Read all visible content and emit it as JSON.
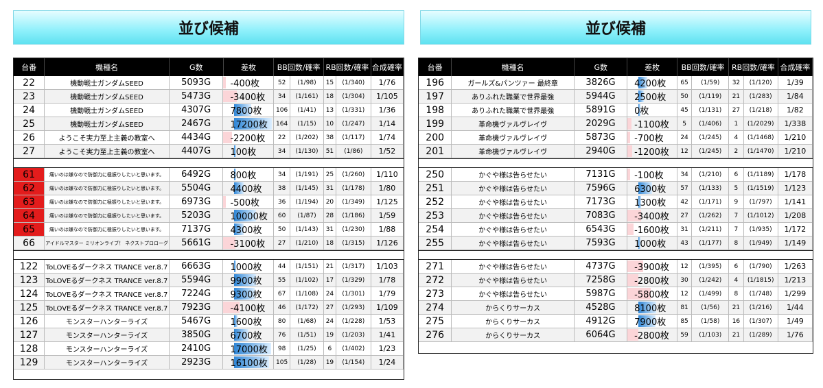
{
  "title": "並び候補",
  "headers": {
    "id": "台番",
    "name": "機種名",
    "g": "G数",
    "diff": "差枚",
    "bb": "BB回数/確率",
    "rb": "RB回数/確率",
    "rate": "合成確率"
  },
  "colors": {
    "highlight_red": "#e31c1c",
    "positive_bar": "#2f86d6",
    "negative_bar": "#fbd5d8",
    "banner": "#8ef0fb"
  },
  "left_groups": [
    [
      {
        "id": "22",
        "name": "機動戦士ガンダムSEED",
        "g": "5093G",
        "diff": "-400枚",
        "diff_value": -400,
        "bb": "52",
        "bb_rate": "(1/98)",
        "rb": "15",
        "rb_rate": "(1/340)",
        "rate": "1/76"
      },
      {
        "id": "23",
        "name": "機動戦士ガンダムSEED",
        "g": "5473G",
        "diff": "-3400枚",
        "diff_value": -3400,
        "bb": "34",
        "bb_rate": "(1/161)",
        "rb": "18",
        "rb_rate": "(1/304)",
        "rate": "1/105"
      },
      {
        "id": "24",
        "name": "機動戦士ガンダムSEED",
        "g": "4307G",
        "diff": "7800枚",
        "diff_value": 7800,
        "bb": "106",
        "bb_rate": "(1/41)",
        "rb": "13",
        "rb_rate": "(1/331)",
        "rate": "1/36"
      },
      {
        "id": "25",
        "name": "機動戦士ガンダムSEED",
        "g": "2467G",
        "diff": "17200枚",
        "diff_value": 17200,
        "bb": "164",
        "bb_rate": "(1/15)",
        "rb": "10",
        "rb_rate": "(1/247)",
        "rate": "1/14"
      },
      {
        "id": "26",
        "name": "ようこそ実力至上主義の教室へ",
        "g": "4434G",
        "diff": "-2200枚",
        "diff_value": -2200,
        "bb": "22",
        "bb_rate": "(1/202)",
        "rb": "38",
        "rb_rate": "(1/117)",
        "rate": "1/74"
      },
      {
        "id": "27",
        "name": "ようこそ実力至上主義の教室へ",
        "g": "4407G",
        "diff": "100枚",
        "diff_value": 100,
        "bb": "34",
        "bb_rate": "(1/130)",
        "rb": "51",
        "rb_rate": "(1/86)",
        "rate": "1/52"
      }
    ],
    [
      {
        "id": "61",
        "red": true,
        "name": "痛いのは嫌なので防御力に極振りしたいと思います。",
        "small": true,
        "g": "6492G",
        "diff": "800枚",
        "diff_value": 800,
        "bb": "34",
        "bb_rate": "(1/191)",
        "rb": "25",
        "rb_rate": "(1/260)",
        "rate": "1/110"
      },
      {
        "id": "62",
        "red": true,
        "name": "痛いのは嫌なので防御力に極振りしたいと思います。",
        "small": true,
        "g": "5504G",
        "diff": "4400枚",
        "diff_value": 4400,
        "bb": "38",
        "bb_rate": "(1/145)",
        "rb": "31",
        "rb_rate": "(1/178)",
        "rate": "1/80"
      },
      {
        "id": "63",
        "red": true,
        "name": "痛いのは嫌なので防御力に極振りしたいと思います。",
        "small": true,
        "g": "6973G",
        "diff": "-500枚",
        "diff_value": -500,
        "bb": "36",
        "bb_rate": "(1/194)",
        "rb": "20",
        "rb_rate": "(1/349)",
        "rate": "1/125"
      },
      {
        "id": "64",
        "red": true,
        "name": "痛いのは嫌なので防御力に極振りしたいと思います。",
        "small": true,
        "g": "5203G",
        "diff": "10000枚",
        "diff_value": 10000,
        "bb": "60",
        "bb_rate": "(1/87)",
        "rb": "28",
        "rb_rate": "(1/186)",
        "rate": "1/59"
      },
      {
        "id": "65",
        "red": true,
        "name": "痛いのは嫌なので防御力に極振りしたいと思います。",
        "small": true,
        "g": "7137G",
        "diff": "4300枚",
        "diff_value": 4300,
        "bb": "50",
        "bb_rate": "(1/143)",
        "rb": "31",
        "rb_rate": "(1/230)",
        "rate": "1/88"
      },
      {
        "id": "66",
        "name": "アイドルマスター ミリオンライブ！ ネクストプロローグ",
        "small": true,
        "g": "5661G",
        "diff": "-3100枚",
        "diff_value": -3100,
        "bb": "27",
        "bb_rate": "(1/210)",
        "rb": "18",
        "rb_rate": "(1/315)",
        "rate": "1/126"
      }
    ],
    [
      {
        "id": "122",
        "name": "ToLOVEるダークネス TRANCE ver.8.7",
        "g": "6663G",
        "diff": "1000枚",
        "diff_value": 1000,
        "bb": "44",
        "bb_rate": "(1/151)",
        "rb": "21",
        "rb_rate": "(1/317)",
        "rate": "1/103"
      },
      {
        "id": "123",
        "name": "ToLOVEるダークネス TRANCE ver.8.7",
        "g": "5594G",
        "diff": "9900枚",
        "diff_value": 9900,
        "bb": "55",
        "bb_rate": "(1/102)",
        "rb": "17",
        "rb_rate": "(1/329)",
        "rate": "1/78"
      },
      {
        "id": "124",
        "name": "ToLOVEるダークネス TRANCE ver.8.7",
        "g": "7224G",
        "diff": "9300枚",
        "diff_value": 9300,
        "bb": "67",
        "bb_rate": "(1/108)",
        "rb": "24",
        "rb_rate": "(1/301)",
        "rate": "1/79"
      },
      {
        "id": "125",
        "name": "ToLOVEるダークネス TRANCE ver.8.7",
        "g": "7923G",
        "diff": "-4100枚",
        "diff_value": -4100,
        "bb": "46",
        "bb_rate": "(1/172)",
        "rb": "27",
        "rb_rate": "(1/293)",
        "rate": "1/109"
      },
      {
        "id": "126",
        "name": "モンスターハンターライズ",
        "g": "5467G",
        "diff": "1600枚",
        "diff_value": 1600,
        "bb": "80",
        "bb_rate": "(1/68)",
        "rb": "24",
        "rb_rate": "(1/228)",
        "rate": "1/53"
      },
      {
        "id": "127",
        "name": "モンスターハンターライズ",
        "g": "3850G",
        "diff": "6700枚",
        "diff_value": 6700,
        "bb": "76",
        "bb_rate": "(1/51)",
        "rb": "19",
        "rb_rate": "(1/203)",
        "rate": "1/41"
      },
      {
        "id": "128",
        "name": "モンスターハンターライズ",
        "g": "2410G",
        "diff": "17000枚",
        "diff_value": 17000,
        "bb": "98",
        "bb_rate": "(1/25)",
        "rb": "6",
        "rb_rate": "(1/402)",
        "rate": "1/23"
      },
      {
        "id": "129",
        "name": "モンスターハンターライズ",
        "g": "2923G",
        "diff": "16100枚",
        "diff_value": 16100,
        "bb": "105",
        "bb_rate": "(1/28)",
        "rb": "19",
        "rb_rate": "(1/154)",
        "rate": "1/24"
      }
    ]
  ],
  "right_groups": [
    [
      {
        "id": "196",
        "name": "ガールズ&パンツァー 最終章",
        "g": "3826G",
        "diff": "4200枚",
        "diff_value": 4200,
        "bb": "65",
        "bb_rate": "(1/59)",
        "rb": "32",
        "rb_rate": "(1/120)",
        "rate": "1/39"
      },
      {
        "id": "197",
        "name": "ありふれた職業で世界最強",
        "g": "5944G",
        "diff": "2500枚",
        "diff_value": 2500,
        "bb": "50",
        "bb_rate": "(1/119)",
        "rb": "21",
        "rb_rate": "(1/283)",
        "rate": "1/84"
      },
      {
        "id": "198",
        "name": "ありふれた職業で世界最強",
        "g": "5891G",
        "diff": "0枚",
        "diff_value": 0,
        "bb": "45",
        "bb_rate": "(1/131)",
        "rb": "27",
        "rb_rate": "(1/218)",
        "rate": "1/82"
      },
      {
        "id": "199",
        "name": "革命機ヴァルヴレイヴ",
        "g": "2029G",
        "diff": "-1100枚",
        "diff_value": -1100,
        "bb": "5",
        "bb_rate": "(1/406)",
        "rb": "1",
        "rb_rate": "(1/2029)",
        "rate": "1/338"
      },
      {
        "id": "200",
        "name": "革命機ヴァルヴレイヴ",
        "g": "5873G",
        "diff": "-700枚",
        "diff_value": -700,
        "bb": "24",
        "bb_rate": "(1/245)",
        "rb": "4",
        "rb_rate": "(1/1468)",
        "rate": "1/210"
      },
      {
        "id": "201",
        "name": "革命機ヴァルヴレイヴ",
        "g": "2940G",
        "diff": "-1200枚",
        "diff_value": -1200,
        "bb": "12",
        "bb_rate": "(1/245)",
        "rb": "2",
        "rb_rate": "(1/1470)",
        "rate": "1/210"
      }
    ],
    [
      {
        "id": "250",
        "name": "かぐや様は告らせたい",
        "g": "7131G",
        "diff": "-100枚",
        "diff_value": -100,
        "bb": "34",
        "bb_rate": "(1/210)",
        "rb": "6",
        "rb_rate": "(1/1189)",
        "rate": "1/178"
      },
      {
        "id": "251",
        "name": "かぐや様は告らせたい",
        "g": "7596G",
        "diff": "6300枚",
        "diff_value": 6300,
        "bb": "57",
        "bb_rate": "(1/133)",
        "rb": "5",
        "rb_rate": "(1/1519)",
        "rate": "1/123"
      },
      {
        "id": "252",
        "name": "かぐや様は告らせたい",
        "g": "7173G",
        "diff": "1300枚",
        "diff_value": 1300,
        "bb": "42",
        "bb_rate": "(1/171)",
        "rb": "9",
        "rb_rate": "(1/797)",
        "rate": "1/141"
      },
      {
        "id": "253",
        "name": "かぐや様は告らせたい",
        "g": "7083G",
        "diff": "-3400枚",
        "diff_value": -3400,
        "bb": "27",
        "bb_rate": "(1/262)",
        "rb": "7",
        "rb_rate": "(1/1012)",
        "rate": "1/208"
      },
      {
        "id": "254",
        "name": "かぐや様は告らせたい",
        "g": "6543G",
        "diff": "-1600枚",
        "diff_value": -1600,
        "bb": "31",
        "bb_rate": "(1/211)",
        "rb": "7",
        "rb_rate": "(1/935)",
        "rate": "1/172"
      },
      {
        "id": "255",
        "name": "かぐや様は告らせたい",
        "g": "7593G",
        "diff": "1000枚",
        "diff_value": 1000,
        "bb": "43",
        "bb_rate": "(1/177)",
        "rb": "8",
        "rb_rate": "(1/949)",
        "rate": "1/149"
      }
    ],
    [
      {
        "id": "271",
        "name": "かぐや様は告らせたい",
        "g": "4737G",
        "diff": "-3900枚",
        "diff_value": -3900,
        "bb": "12",
        "bb_rate": "(1/395)",
        "rb": "6",
        "rb_rate": "(1/790)",
        "rate": "1/263"
      },
      {
        "id": "272",
        "name": "かぐや様は告らせたい",
        "g": "7258G",
        "diff": "-2800枚",
        "diff_value": -2800,
        "bb": "30",
        "bb_rate": "(1/242)",
        "rb": "4",
        "rb_rate": "(1/1815)",
        "rate": "1/213"
      },
      {
        "id": "273",
        "name": "かぐや様は告らせたい",
        "g": "5987G",
        "diff": "-5800枚",
        "diff_value": -5800,
        "bb": "12",
        "bb_rate": "(1/499)",
        "rb": "8",
        "rb_rate": "(1/748)",
        "rate": "1/299"
      },
      {
        "id": "274",
        "name": "からくりサーカス",
        "g": "4528G",
        "diff": "8100枚",
        "diff_value": 8100,
        "bb": "81",
        "bb_rate": "(1/56)",
        "rb": "21",
        "rb_rate": "(1/216)",
        "rate": "1/44"
      },
      {
        "id": "275",
        "name": "からくりサーカス",
        "g": "4912G",
        "diff": "7900枚",
        "diff_value": 7900,
        "bb": "85",
        "bb_rate": "(1/58)",
        "rb": "16",
        "rb_rate": "(1/307)",
        "rate": "1/49"
      },
      {
        "id": "276",
        "name": "からくりサーカス",
        "g": "6064G",
        "diff": "-2800枚",
        "diff_value": -2800,
        "bb": "59",
        "bb_rate": "(1/103)",
        "rb": "21",
        "rb_rate": "(1/289)",
        "rate": "1/76"
      }
    ]
  ]
}
